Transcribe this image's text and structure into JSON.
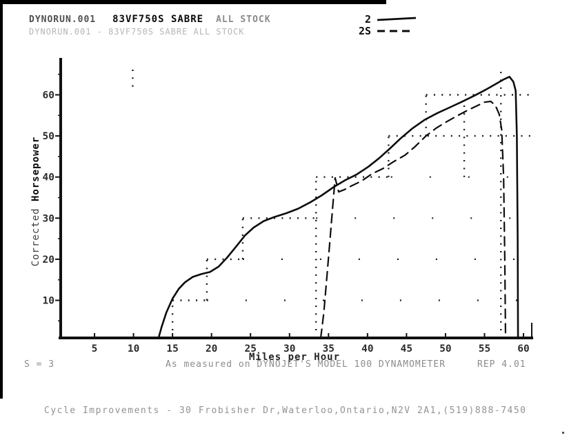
{
  "header": {
    "run_line_1": {
      "file": "DYNORUN.001",
      "title": "83VF750S SABRE",
      "suffix": "ALL STOCK"
    },
    "run_line_2": "DYNORUN.001 - 83VF750S SABRE ALL STOCK"
  },
  "legend": {
    "entries": [
      {
        "label": "2",
        "style": "solid"
      },
      {
        "label": "2S",
        "style": "dashed"
      }
    ]
  },
  "status_bar": {
    "left": "S = 3",
    "center": "As measured on DYNOJET'S MODEL 100 DYNAMOMETER",
    "right": "REP 4.01"
  },
  "footer": "Cycle Improvements - 30 Frobisher Dr,Waterloo,Ontario,N2V 2A1,(519)888-7450",
  "colors": {
    "ink": "#111111",
    "dots": "#1a1a1a",
    "faded": "#b5b5b5",
    "status": "#8c8c8c"
  },
  "chart_data": {
    "type": "line",
    "title": "",
    "xlabel": "Miles per Hour",
    "ylabel": "Corrected Horsepower",
    "ylabel_normal": "Corrected ",
    "ylabel_bold": "Horsepower",
    "xlim": [
      0,
      62
    ],
    "ylim": [
      0,
      68
    ],
    "x_ticks": [
      5,
      10,
      15,
      20,
      25,
      30,
      35,
      40,
      45,
      50,
      55,
      60
    ],
    "y_ticks": [
      10,
      20,
      30,
      40,
      50,
      60
    ],
    "y_minor_ticks": [
      5,
      15,
      25,
      35,
      45,
      55,
      65
    ],
    "grid": "dotted staircase segments tracing each run's 10-hp crossings",
    "legend_position": "top-center",
    "series": [
      {
        "name": "2",
        "style": "solid",
        "points": [
          [
            13.2,
            0.8
          ],
          [
            13.6,
            3.5
          ],
          [
            14.2,
            7
          ],
          [
            15,
            10.4
          ],
          [
            15.8,
            12.8
          ],
          [
            16.6,
            14.4
          ],
          [
            17.6,
            15.7
          ],
          [
            18.7,
            16.4
          ],
          [
            19.8,
            16.9
          ],
          [
            20.9,
            18.2
          ],
          [
            22,
            20.4
          ],
          [
            23.2,
            23.2
          ],
          [
            24.3,
            25.8
          ],
          [
            25.4,
            27.7
          ],
          [
            26.7,
            29.3
          ],
          [
            28.1,
            30.3
          ],
          [
            29.6,
            31.2
          ],
          [
            31.1,
            32.3
          ],
          [
            32.6,
            33.8
          ],
          [
            34.1,
            35.5
          ],
          [
            35.7,
            37.6
          ],
          [
            37.2,
            39.3
          ],
          [
            38.6,
            40.6
          ],
          [
            40.1,
            42.5
          ],
          [
            41.5,
            44.6
          ],
          [
            42.9,
            47
          ],
          [
            44.3,
            49.5
          ],
          [
            45.8,
            51.9
          ],
          [
            47.3,
            53.9
          ],
          [
            48.9,
            55.5
          ],
          [
            50.5,
            56.9
          ],
          [
            52.1,
            58.3
          ],
          [
            53.7,
            59.8
          ],
          [
            55.2,
            61.3
          ],
          [
            56.5,
            62.7
          ],
          [
            57.5,
            63.8
          ],
          [
            58.2,
            64.4
          ],
          [
            58.7,
            63.2
          ],
          [
            59,
            61
          ],
          [
            59.15,
            50
          ],
          [
            59.25,
            25
          ],
          [
            59.3,
            0.8
          ]
        ]
      },
      {
        "name": "2S",
        "style": "dashed",
        "points": [
          [
            34,
            0.8
          ],
          [
            34.4,
            7
          ],
          [
            34.8,
            16
          ],
          [
            35.2,
            25
          ],
          [
            35.5,
            32
          ],
          [
            35.75,
            37.5
          ],
          [
            35.85,
            39.8
          ],
          [
            36.3,
            36.4
          ],
          [
            37,
            36.9
          ],
          [
            38,
            37.9
          ],
          [
            39.2,
            39
          ],
          [
            40.6,
            40.8
          ],
          [
            42,
            42.1
          ],
          [
            43.4,
            43.8
          ],
          [
            44.8,
            45.3
          ],
          [
            46.1,
            47.4
          ],
          [
            47.5,
            50
          ],
          [
            48.8,
            51.9
          ],
          [
            50.1,
            53.4
          ],
          [
            51.4,
            54.8
          ],
          [
            52.7,
            56.1
          ],
          [
            54,
            57.3
          ],
          [
            55,
            58.2
          ],
          [
            55.8,
            58.4
          ],
          [
            56.4,
            57.4
          ],
          [
            56.9,
            55.2
          ],
          [
            57.2,
            51.5
          ],
          [
            57.45,
            40
          ],
          [
            57.6,
            20
          ],
          [
            57.7,
            0.8
          ]
        ]
      }
    ],
    "dotted_segments": {
      "dense": [
        [
          15,
          0.8,
          15,
          10
        ],
        [
          15,
          10,
          19.4,
          10
        ],
        [
          19.4,
          10,
          19.4,
          20
        ],
        [
          19.4,
          20,
          24,
          20
        ],
        [
          24,
          20,
          24,
          30
        ],
        [
          24,
          30,
          33.4,
          30
        ],
        [
          33.4,
          0.8,
          33.4,
          40
        ],
        [
          33.4,
          40,
          43,
          40
        ],
        [
          42.7,
          40,
          42.7,
          50
        ],
        [
          42.7,
          50,
          61,
          50
        ],
        [
          47.5,
          50,
          47.5,
          60
        ],
        [
          47.5,
          60,
          61,
          60
        ],
        [
          52.4,
          40,
          52.4,
          58
        ],
        [
          57.1,
          0.8,
          57.1,
          66
        ],
        [
          9.9,
          62,
          9.9,
          66.5
        ]
      ],
      "sparse": [
        [
          19.4,
          10,
          60.5,
          10
        ],
        [
          24,
          20,
          60.5,
          20
        ],
        [
          33.4,
          30,
          60.5,
          30
        ],
        [
          43,
          40,
          60.5,
          40
        ]
      ]
    }
  }
}
